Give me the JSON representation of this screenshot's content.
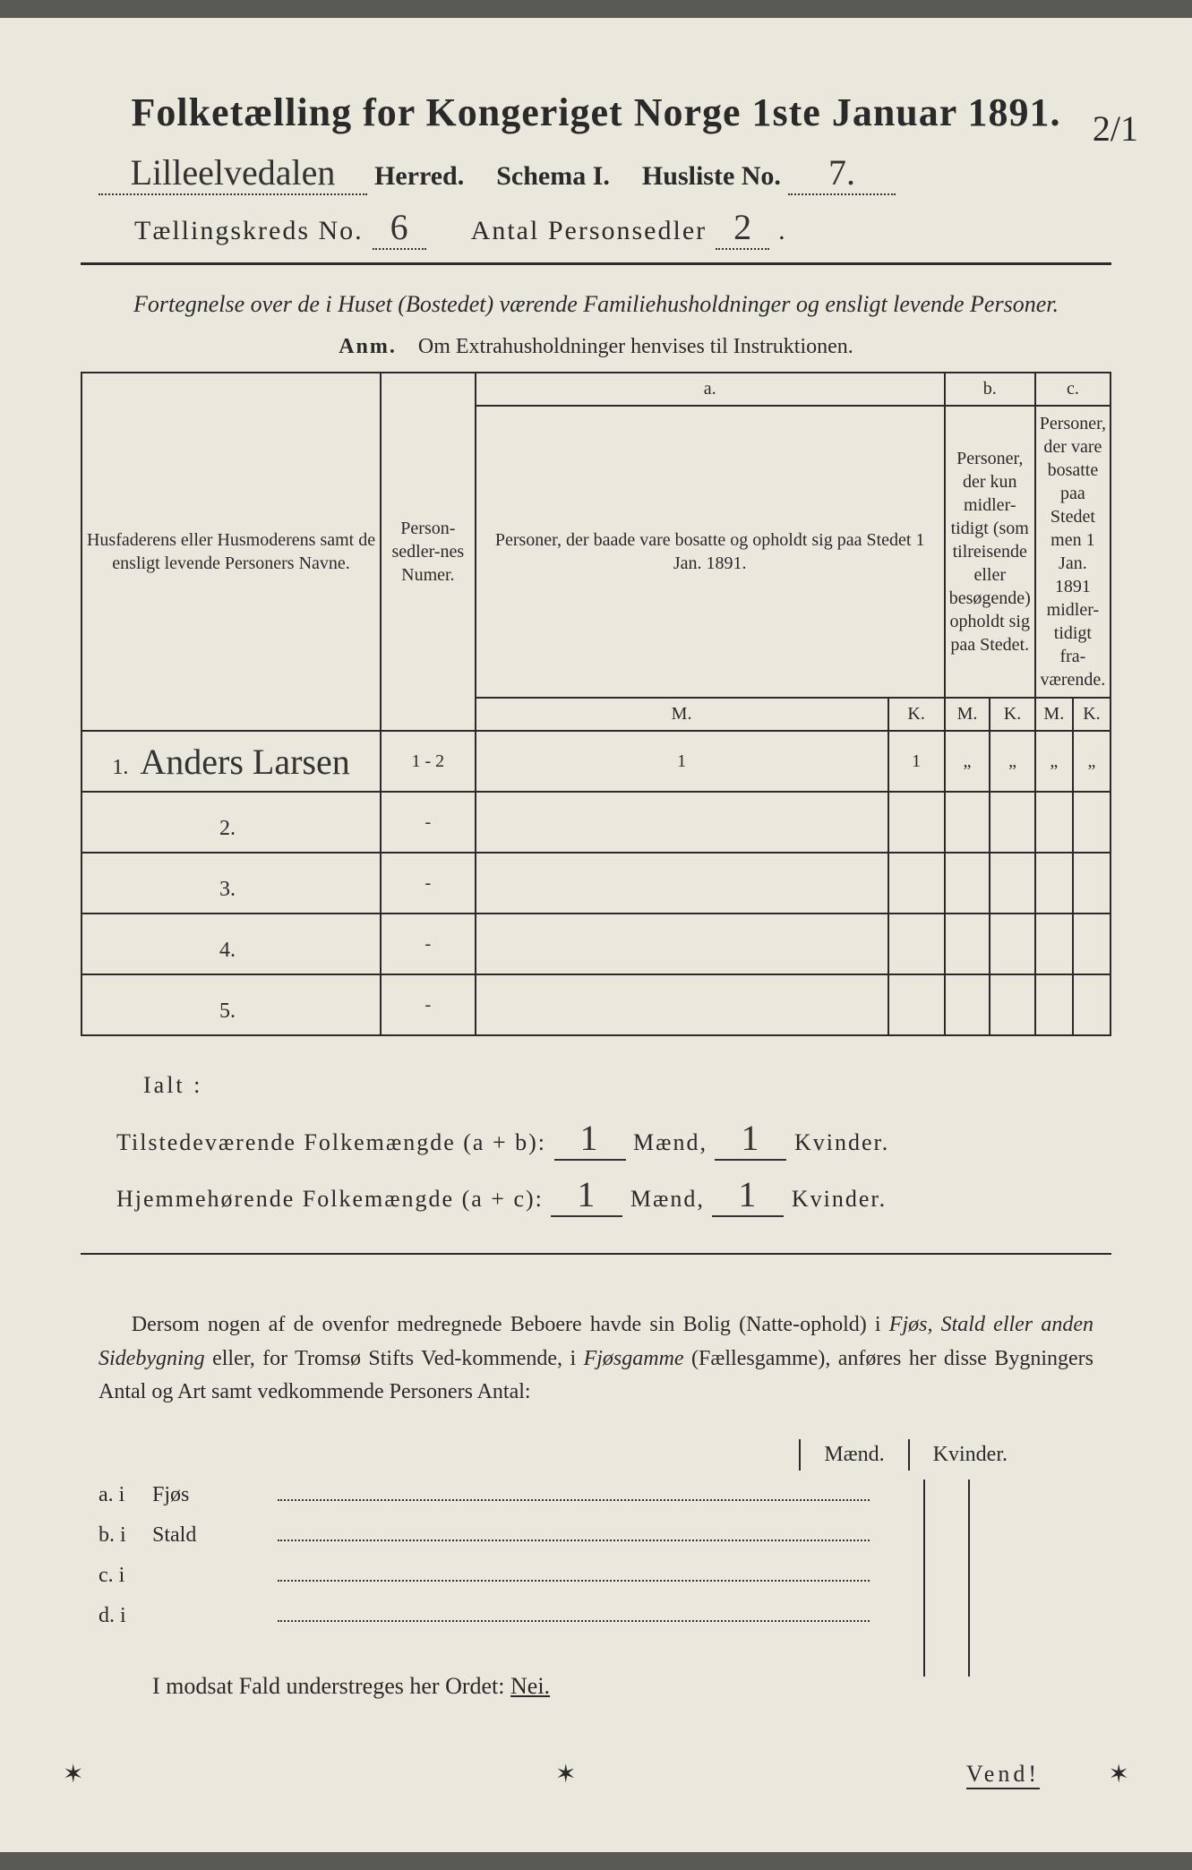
{
  "colors": {
    "paper": "#eae8dc",
    "ink": "#2a2a2a",
    "background": "#5a5a54"
  },
  "title": "Folketælling for Kongeriget Norge 1ste Januar 1891.",
  "corner_fraction": "2/1",
  "line2": {
    "herred_value": "Lilleelvedalen",
    "herred_label": "Herred.",
    "schema": "Schema I.",
    "husliste_label": "Husliste No.",
    "husliste_value": "7."
  },
  "line3": {
    "kreds_label": "Tællingskreds No.",
    "kreds_value": "6",
    "antal_label": "Antal Personsedler",
    "antal_value": "2"
  },
  "subtitle": "Fortegnelse over de i Huset (Bostedet) værende Familiehusholdninger og ensligt levende Personer.",
  "anm_label": "Anm.",
  "anm_text": "Om Extrahusholdninger henvises til Instruktionen.",
  "table": {
    "head_name": "Husfaderens eller Husmoderens samt de ensligt levende Personers Navne.",
    "head_num": "Person-sedler-nes Numer.",
    "group_a": "a.",
    "desc_a": "Personer, der baade vare bosatte og opholdt sig paa Stedet 1 Jan. 1891.",
    "group_b": "b.",
    "desc_b": "Personer, der kun midler-tidigt (som tilreisende eller besøgende) opholdt sig paa Stedet.",
    "group_c": "c.",
    "desc_c": "Personer, der vare bosatte paa Stedet men 1 Jan. 1891 midler-tidigt fra-værende.",
    "m": "M.",
    "k": "K.",
    "rows": [
      {
        "n": "1.",
        "name": "Anders Larsen",
        "num": "1 - 2",
        "aM": "1",
        "aK": "1",
        "bM": "„",
        "bK": "„",
        "cM": "„",
        "cK": "„"
      },
      {
        "n": "2.",
        "name": "",
        "num": "-",
        "aM": "",
        "aK": "",
        "bM": "",
        "bK": "",
        "cM": "",
        "cK": ""
      },
      {
        "n": "3.",
        "name": "",
        "num": "-",
        "aM": "",
        "aK": "",
        "bM": "",
        "bK": "",
        "cM": "",
        "cK": ""
      },
      {
        "n": "4.",
        "name": "",
        "num": "-",
        "aM": "",
        "aK": "",
        "bM": "",
        "bK": "",
        "cM": "",
        "cK": ""
      },
      {
        "n": "5.",
        "name": "",
        "num": "-",
        "aM": "",
        "aK": "",
        "bM": "",
        "bK": "",
        "cM": "",
        "cK": ""
      }
    ]
  },
  "ialt": "Ialt :",
  "totals": {
    "line1_label": "Tilstedeværende Folkemængde (a + b):",
    "line2_label": "Hjemmehørende Folkemængde (a + c):",
    "maend": "Mænd,",
    "kvinder": "Kvinder.",
    "l1_m": "1",
    "l1_k": "1",
    "l2_m": "1",
    "l2_k": "1"
  },
  "para": "Dersom nogen af de ovenfor medregnede Beboere havde sin Bolig (Natte-ophold) i Fjøs, Stald eller anden Sidebygning eller, for Tromsø Stifts Ved-kommende, i Fjøsgamme (Fællesgamme), anføres her disse Bygningers Antal og Art samt vedkommende Personers Antal:",
  "mk_maend": "Mænd.",
  "mk_kvinder": "Kvinder.",
  "side": [
    {
      "label": "a.  i",
      "name": "Fjøs"
    },
    {
      "label": "b.  i",
      "name": "Stald"
    },
    {
      "label": "c.  i",
      "name": ""
    },
    {
      "label": "d.  i",
      "name": ""
    }
  ],
  "nei_text": "I modsat Fald understreges her Ordet: ",
  "nei": "Nei.",
  "vend": "Vend!"
}
